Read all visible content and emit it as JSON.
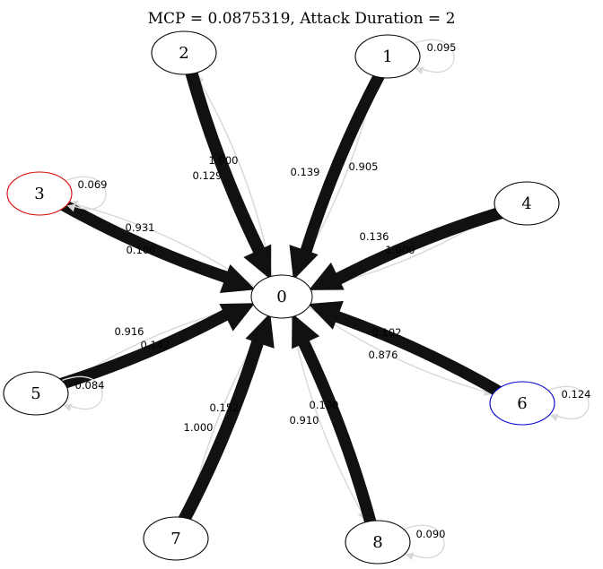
{
  "title": "MCP = 0.0875319, Attack Duration = 2",
  "nodes": [
    {
      "id": "0",
      "label": "0",
      "color": "#000000"
    },
    {
      "id": "1",
      "label": "1",
      "color": "#000000"
    },
    {
      "id": "2",
      "label": "2",
      "color": "#000000"
    },
    {
      "id": "3",
      "label": "3",
      "color": "#dd0000"
    },
    {
      "id": "4",
      "label": "4",
      "color": "#000000"
    },
    {
      "id": "5",
      "label": "5",
      "color": "#000000"
    },
    {
      "id": "6",
      "label": "6",
      "color": "#0000cc"
    },
    {
      "id": "7",
      "label": "7",
      "color": "#000000"
    },
    {
      "id": "8",
      "label": "8",
      "color": "#000000"
    }
  ],
  "edges_in": [
    {
      "from": "1",
      "to": "0",
      "label": "0.905",
      "weight": 0.905
    },
    {
      "from": "2",
      "to": "0",
      "label": "1.000",
      "weight": 1.0
    },
    {
      "from": "3",
      "to": "0",
      "label": "0.931",
      "weight": 0.931
    },
    {
      "from": "4",
      "to": "0",
      "label": "1.000",
      "weight": 1.0
    },
    {
      "from": "5",
      "to": "0",
      "label": "0.916",
      "weight": 0.916
    },
    {
      "from": "6",
      "to": "0",
      "label": "0.876",
      "weight": 0.876
    },
    {
      "from": "7",
      "to": "0",
      "label": "1.000",
      "weight": 1.0
    },
    {
      "from": "8",
      "to": "0",
      "label": "0.910",
      "weight": 0.91
    }
  ],
  "edges_out": [
    {
      "from": "0",
      "to": "1",
      "label": "0.139",
      "weight": 0.139
    },
    {
      "from": "0",
      "to": "2",
      "label": "0.129",
      "weight": 0.129
    },
    {
      "from": "0",
      "to": "3",
      "label": "0.100",
      "weight": 0.1
    },
    {
      "from": "0",
      "to": "4",
      "label": "0.136",
      "weight": 0.136
    },
    {
      "from": "0",
      "to": "5",
      "label": "0.142",
      "weight": 0.142
    },
    {
      "from": "0",
      "to": "6",
      "label": "0.102",
      "weight": 0.102
    },
    {
      "from": "0",
      "to": "7",
      "label": "0.152",
      "weight": 0.152
    },
    {
      "from": "0",
      "to": "8",
      "label": "0.100",
      "weight": 0.1
    }
  ],
  "self_loops": [
    {
      "node": "1",
      "label": "0.095"
    },
    {
      "node": "3",
      "label": "0.069"
    },
    {
      "node": "5",
      "label": "0.084"
    },
    {
      "node": "6",
      "label": "0.124"
    },
    {
      "node": "8",
      "label": "0.090"
    }
  ],
  "colors": {
    "strong_edge": "#111111",
    "weak_edge": "#d9d9d9",
    "background": "#ffffff"
  }
}
